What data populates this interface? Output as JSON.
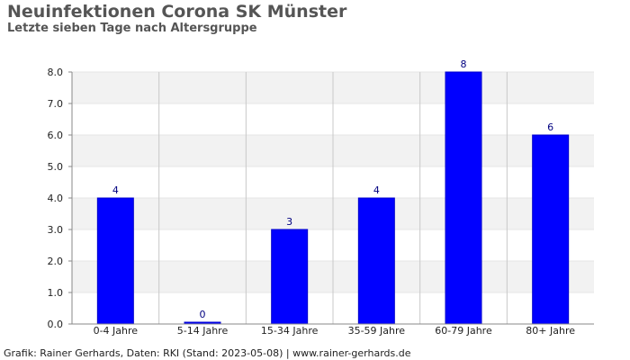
{
  "chart_data": {
    "type": "bar",
    "title": "Neuinfektionen Corona SK Münster",
    "subtitle": "Letzte sieben Tage nach Altersgruppe",
    "categories": [
      "0-4 Jahre",
      "5-14 Jahre",
      "15-34 Jahre",
      "35-59 Jahre",
      "60-79 Jahre",
      "80+ Jahre"
    ],
    "values": [
      4,
      0,
      3,
      4,
      8,
      6
    ],
    "data_labels": [
      "4",
      "0",
      "3",
      "4",
      "8",
      "6"
    ],
    "yticks": [
      "0.0",
      "1.0",
      "2.0",
      "3.0",
      "4.0",
      "5.0",
      "6.0",
      "7.0",
      "8.0"
    ],
    "ylim": [
      0,
      8
    ],
    "xlabel": "",
    "ylabel": "",
    "grid": true,
    "legend": "none",
    "colors": {
      "bar": "#0000ff",
      "bar_edge": "#0000cc",
      "band": "#f2f2f2",
      "grid": "#c8c8c8",
      "label": "#000080"
    }
  },
  "footer": "Grafik: Rainer Gerhards, Daten: RKI (Stand: 2023-05-08) | www.rainer-gerhards.de"
}
